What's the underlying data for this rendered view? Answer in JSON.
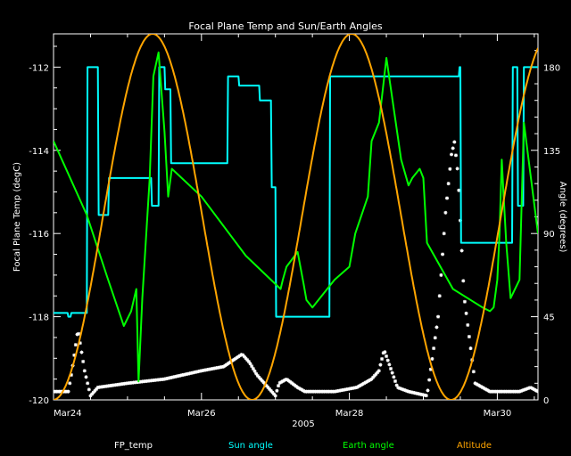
{
  "chart_data": {
    "type": "line",
    "title": "Focal Plane Temp and Sun/Earth Angles",
    "xlabel": "2005",
    "ylabel_left": "Focal Plane Temp (degC)",
    "ylabel_right": "Angle (degrees)",
    "x_tick_labels": [
      "Mar24",
      "Mar26",
      "Mar28",
      "Mar30"
    ],
    "xlim": [
      "Mar24",
      "Mar30 (+0.55 d)"
    ],
    "ylim_left": [
      -120,
      -111.2
    ],
    "ylim_right": [
      0,
      198
    ],
    "y_left_ticks": [
      "-112",
      "-114",
      "-116",
      "-118",
      "-120"
    ],
    "y_right_ticks": [
      "180",
      "135",
      "90",
      "45",
      "0"
    ],
    "legend_position": "bottom",
    "series": [
      {
        "name": "FP_temp",
        "color": "#ffffff",
        "axis": "left",
        "marker": "asterisk",
        "x_days": [
          0.0,
          0.2,
          0.25,
          0.33,
          0.42,
          0.5,
          0.6,
          1.0,
          1.5,
          2.0,
          2.3,
          2.55,
          2.65,
          2.75,
          2.85,
          3.0,
          3.05,
          3.15,
          3.3,
          3.4,
          3.6,
          3.8,
          4.1,
          4.3,
          4.4,
          4.47,
          4.55,
          4.65,
          4.8,
          5.05,
          5.2,
          5.3,
          5.38,
          5.42,
          5.47,
          5.55,
          5.7,
          5.9,
          6.1,
          6.3,
          6.45,
          6.55
        ],
        "y_degC": [
          -119.8,
          -119.8,
          -119.3,
          -118.3,
          -119.3,
          -119.9,
          -119.7,
          -119.6,
          -119.5,
          -119.3,
          -119.2,
          -118.9,
          -119.1,
          -119.4,
          -119.6,
          -119.9,
          -119.6,
          -119.5,
          -119.7,
          -119.8,
          -119.8,
          -119.8,
          -119.7,
          -119.5,
          -119.3,
          -118.8,
          -119.2,
          -119.7,
          -119.8,
          -119.9,
          -118.0,
          -115.5,
          -114.1,
          -113.8,
          -114.6,
          -117.5,
          -119.6,
          -119.8,
          -119.8,
          -119.8,
          -119.7,
          -119.8
        ]
      },
      {
        "name": "Sun angle",
        "color": "#00ffff",
        "axis": "right",
        "x_days": [
          0.0,
          0.19,
          0.2,
          0.23,
          0.24,
          0.45,
          0.46,
          0.52,
          0.53,
          0.6,
          0.61,
          0.74,
          0.75,
          1.32,
          1.33,
          1.42,
          1.43,
          1.5,
          1.51,
          1.58,
          1.59,
          1.84,
          1.85,
          2.35,
          2.36,
          2.43,
          2.44,
          2.5,
          2.51,
          2.78,
          2.79,
          2.94,
          2.95,
          3.0,
          3.01,
          3.58,
          3.59,
          3.73,
          3.74,
          5.0,
          5.01,
          5.48,
          5.49,
          5.5,
          5.51,
          5.89,
          5.9,
          6.0,
          6.01,
          6.2,
          6.21,
          6.27,
          6.28,
          6.35,
          6.36,
          6.55
        ],
        "y_deg": [
          47,
          47,
          45,
          45,
          47,
          47,
          180,
          180,
          180,
          180,
          100,
          100,
          120,
          120,
          105,
          105,
          180,
          180,
          168,
          168,
          128,
          128,
          128,
          128,
          175,
          175,
          175,
          175,
          170,
          170,
          162,
          162,
          115,
          115,
          45,
          45,
          45,
          45,
          175,
          175,
          175,
          175,
          180,
          180,
          85,
          85,
          85,
          85,
          85,
          85,
          180,
          180,
          105,
          105,
          180,
          180
        ]
      },
      {
        "name": "Earth angle",
        "color": "#00ff00",
        "axis": "right",
        "x_days": [
          0.0,
          0.45,
          0.73,
          0.95,
          1.05,
          1.12,
          1.15,
          1.2,
          1.3,
          1.35,
          1.42,
          1.5,
          1.55,
          1.6,
          2.0,
          2.6,
          3.07,
          3.1,
          3.15,
          3.3,
          3.38,
          3.42,
          3.5,
          3.8,
          4.0,
          4.08,
          4.25,
          4.3,
          4.4,
          4.5,
          4.7,
          4.8,
          4.85,
          4.95,
          5.0,
          5.05,
          5.4,
          5.6,
          5.8,
          5.9,
          5.95,
          6.0,
          6.03,
          6.06,
          6.08,
          6.12,
          6.18,
          6.3,
          6.36,
          6.55
        ],
        "y_deg": [
          140,
          100,
          66,
          40,
          48,
          60,
          10,
          55,
          120,
          175,
          188,
          145,
          110,
          125,
          110,
          78,
          60,
          65,
          72,
          80,
          63,
          54,
          50,
          65,
          72,
          90,
          110,
          140,
          150,
          185,
          130,
          116,
          120,
          125,
          120,
          85,
          60,
          55,
          50,
          48,
          50,
          65,
          90,
          130,
          115,
          85,
          55,
          65,
          150,
          90
        ]
      },
      {
        "name": "Altitude",
        "color": "#ffa500",
        "axis": "right",
        "model": "sinusoid",
        "period_days": 2.69,
        "peak_days": [
          1.34,
          4.03
        ],
        "min_deg": 0,
        "max_deg": 198
      }
    ]
  }
}
